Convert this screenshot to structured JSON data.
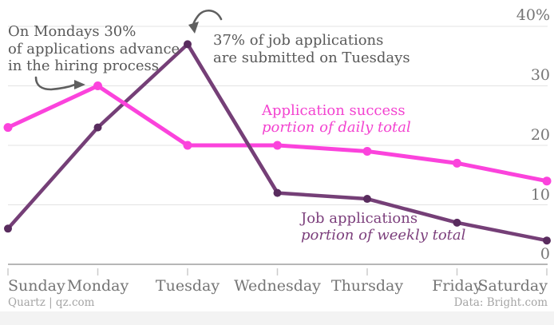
{
  "chart_data": {
    "type": "line",
    "categories": [
      "Sunday",
      "Monday",
      "Tuesday",
      "Wednesday",
      "Thursday",
      "Friday",
      "Saturday"
    ],
    "series": [
      {
        "name": "Application success",
        "subtitle": "portion of daily total",
        "color": "#fb43dc",
        "dot_color": "#fb43dc",
        "values": [
          23,
          30,
          20,
          20,
          19,
          17,
          14
        ]
      },
      {
        "name": "Job applications",
        "subtitle": "portion of weekly total",
        "color": "#753f77",
        "dot_color": "#592c5e",
        "values": [
          6,
          23,
          37,
          12,
          11,
          7,
          4
        ]
      }
    ],
    "unit": "%",
    "ylim": [
      0,
      40
    ],
    "ytick_labels": [
      "40%",
      "30",
      "20",
      "10",
      "0"
    ],
    "ytick_values": [
      40,
      30,
      20,
      10,
      0
    ],
    "grid": true,
    "legend_position": "inline-labels-on-plot"
  },
  "annotations": {
    "monday": {
      "lines": [
        "On Mondays 30%",
        "of applications advance",
        "in the hiring process"
      ]
    },
    "tuesday": {
      "lines": [
        "37% of job applications",
        "are submitted on Tuesdays"
      ]
    }
  },
  "footer": {
    "left": "Quartz | qz.com",
    "right": "Data: Bright.com"
  },
  "colors": {
    "gridline": "#e3e3e3",
    "axis": "#8a8a8a",
    "tick": "#cccccc",
    "annotation_arrow": "#5f5f5f",
    "axis_label_text": "#757575",
    "annotation_text": "#595959",
    "footer_text": "#a5a5a5",
    "bottom_strip": "#f3f3f3",
    "background": "#ffffff"
  }
}
